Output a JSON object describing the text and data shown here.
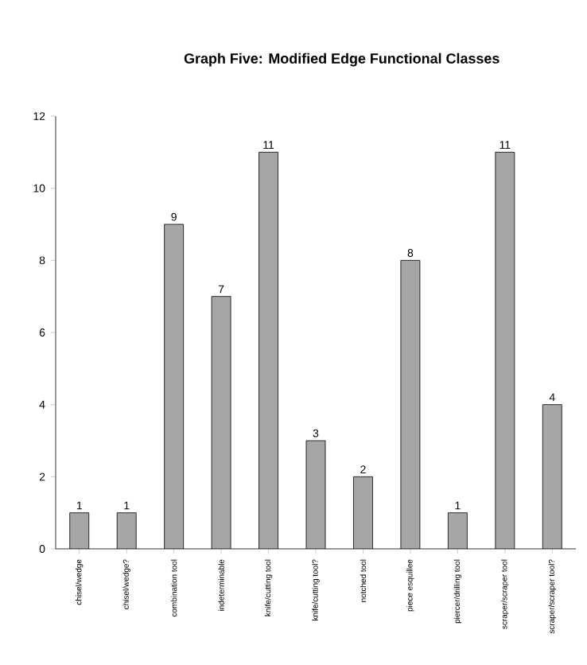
{
  "chart_data": {
    "type": "bar",
    "title": "Graph Five: Modified Edge Functional Classes",
    "categories": [
      "chisel/wedge",
      "chisel/wedge?",
      "combination tool",
      "indeterminable",
      "knife/cutting tool",
      "knife/cutting tool?",
      "notched tool",
      "piece esquillee",
      "piercer/drilling tool",
      "scraper/scraper tool",
      "scraper/scraper tool?"
    ],
    "values": [
      1,
      1,
      9,
      7,
      11,
      3,
      2,
      8,
      1,
      11,
      4
    ],
    "color": "#a6a6a6",
    "ylim": [
      0,
      12
    ],
    "yticks": [
      0,
      2,
      4,
      6,
      8,
      10,
      12
    ],
    "data_labels": true,
    "grid": false
  }
}
